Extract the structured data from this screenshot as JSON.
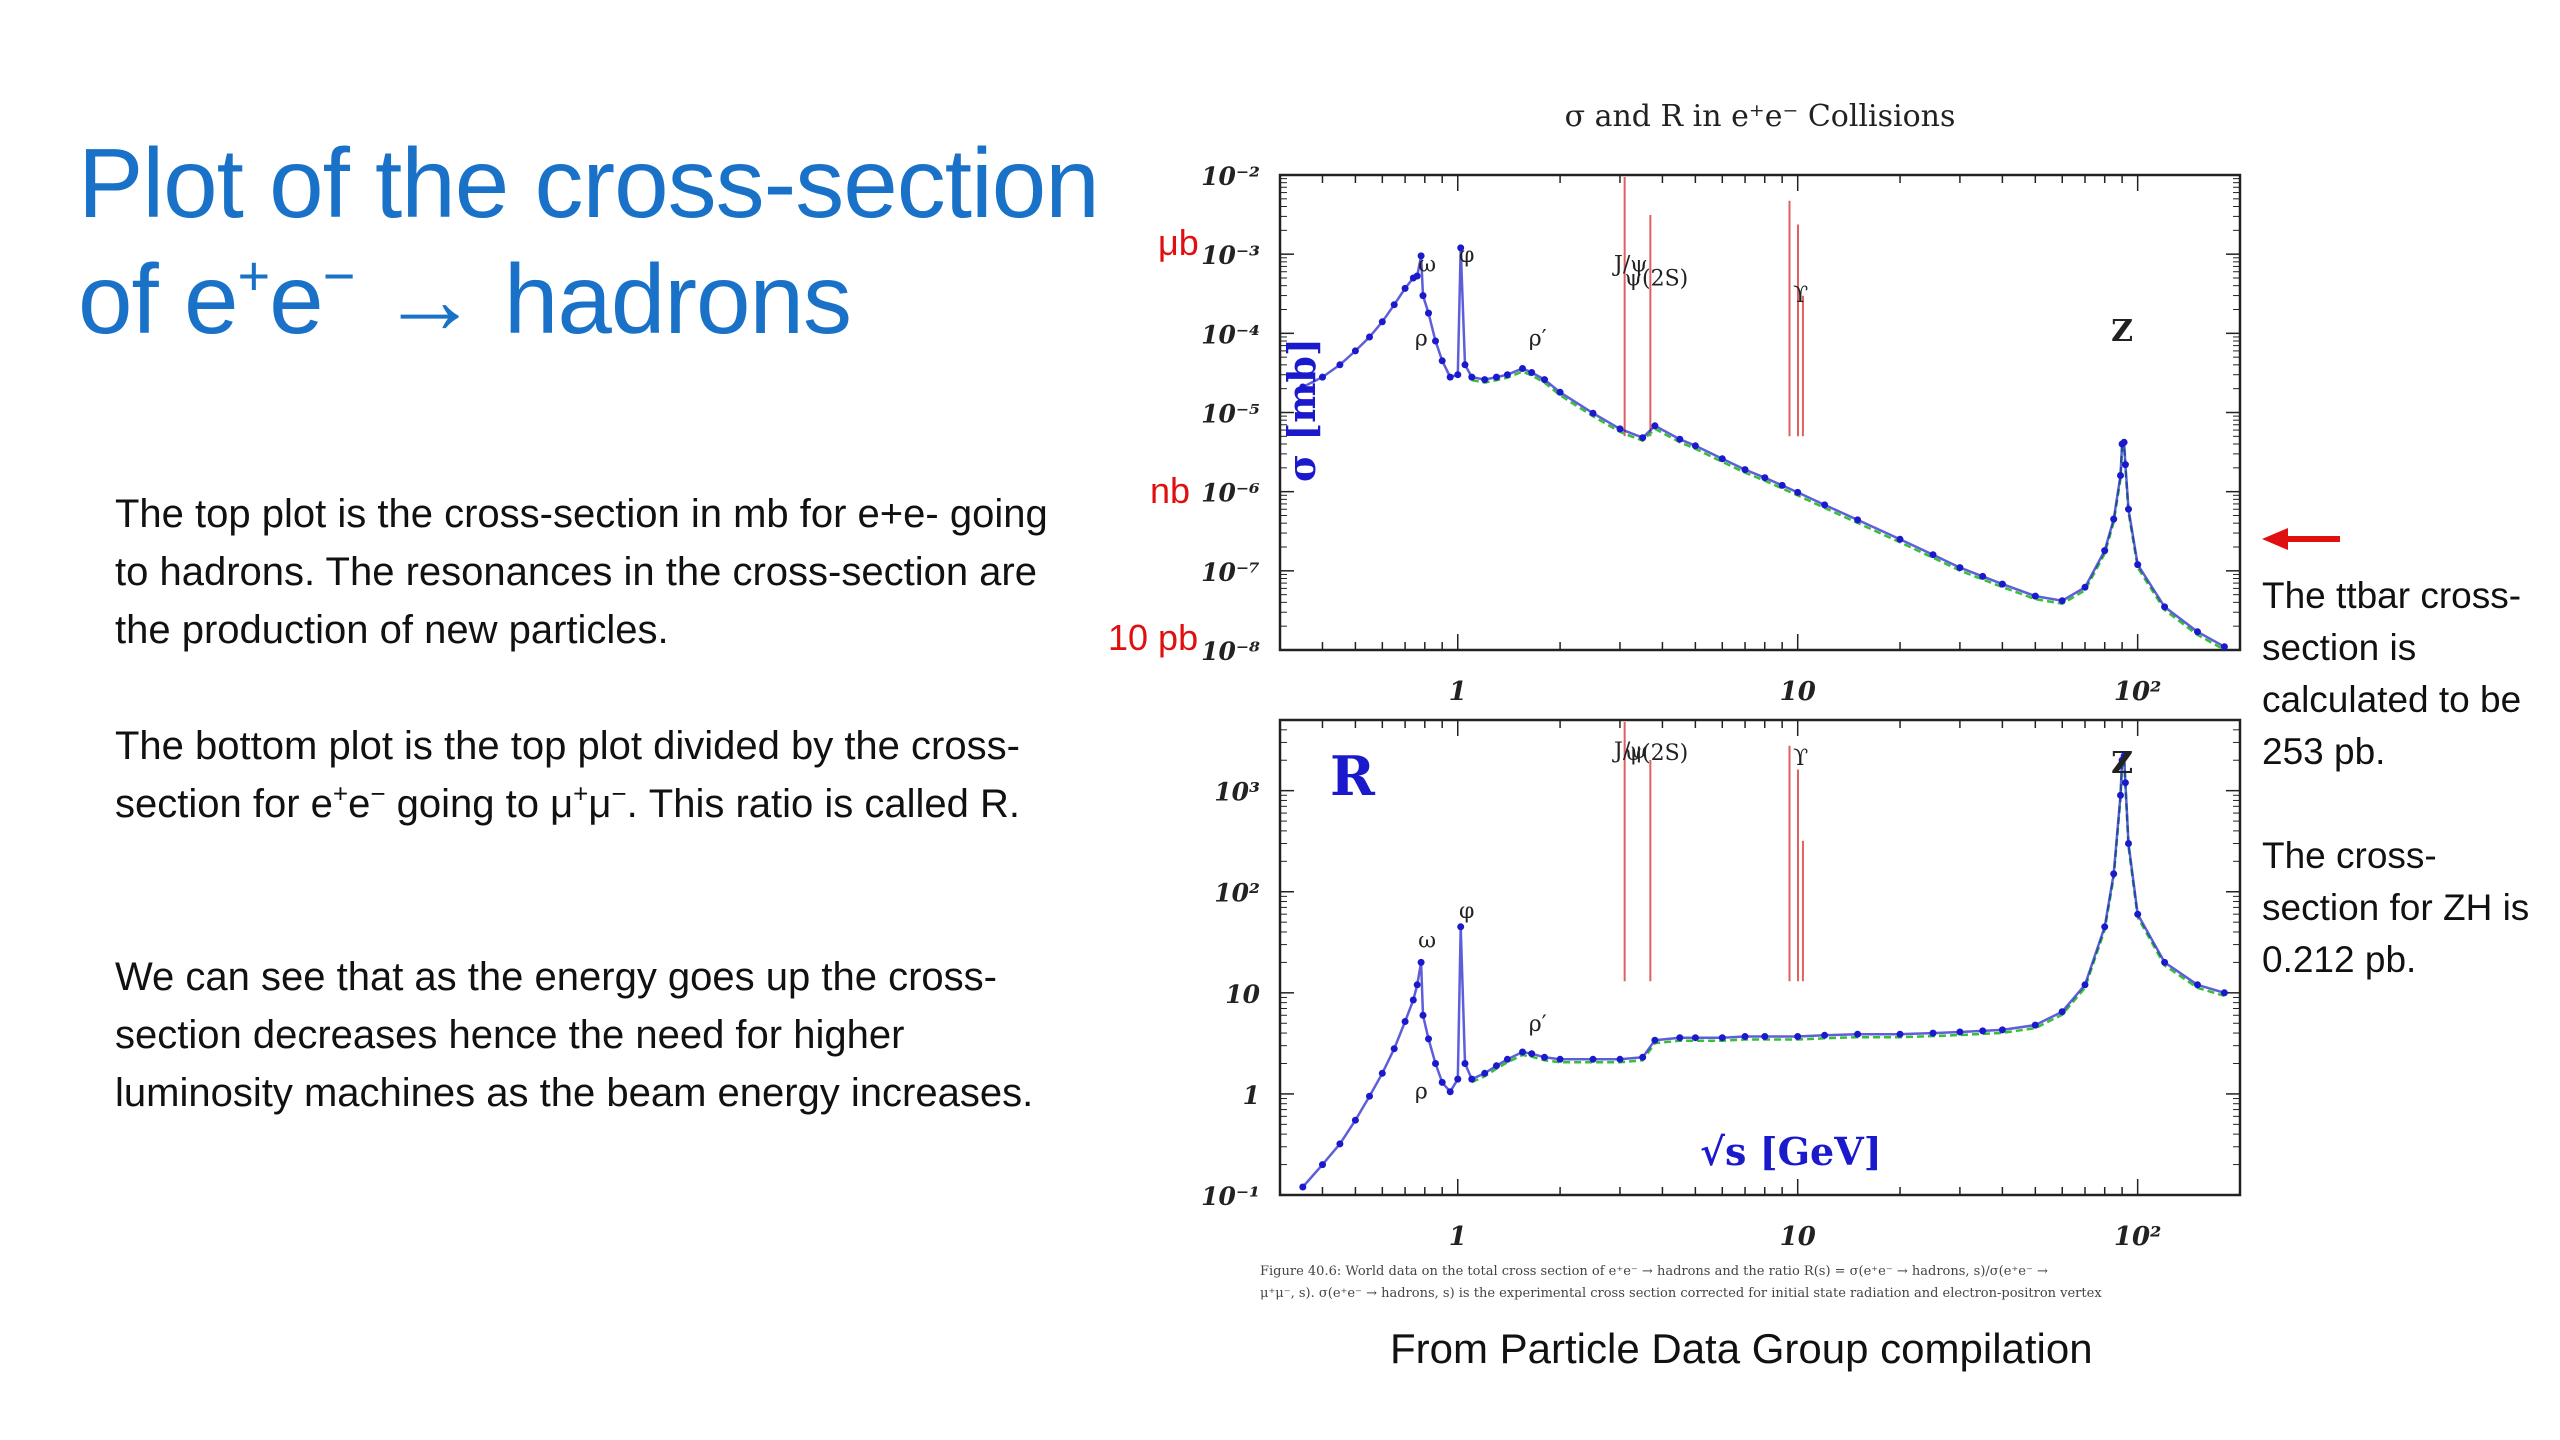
{
  "slide": {
    "title_line1": "Plot of the cross-section",
    "title_line2_a": "of e",
    "title_sup1": "+",
    "title_line2_b": "e",
    "title_sup2": "−",
    "title_line2_c": " → hadrons",
    "para1": "The top plot is the cross-section in mb for e+e- going to hadrons. The resonances in the cross-section are the production of new particles.",
    "para2_a": "The bottom plot is the top plot divided by the cross-section for e",
    "para2_sup1": "+",
    "para2_b": "e",
    "para2_sup2": "−",
    "para2_c": " going to μ",
    "para2_sup3": "+",
    "para2_d": "μ",
    "para2_sup4": "−",
    "para2_e": ". This ratio is called R.",
    "para3": "We can see that as the energy goes up the cross-section decreases hence the need for higher luminosity machines as the beam energy increases.",
    "side1": "The ttbar cross-section is calculated to be 253 pb.",
    "side2": "The cross-section  for ZH is 0.212 pb.",
    "unit_ub": "μb",
    "unit_nb": "nb",
    "unit_10pb": "10 pb",
    "source": "From Particle Data Group compilation",
    "figure_caption_1": "Figure 40.6:  World data on the total cross section of e⁺e⁻ → hadrons and the ratio R(s) = σ(e⁺e⁻ → hadrons, s)/σ(e⁺e⁻ →",
    "figure_caption_2": "μ⁺μ⁻, s). σ(e⁺e⁻ → hadrons, s) is the experimental cross section corrected for initial state radiation and electron-positron vertex"
  },
  "colors": {
    "title": "#1a72c8",
    "data": "#1a1acc",
    "resonance": "#e06060",
    "fit": "#35c035",
    "arrow": "#e01010",
    "units": "#e01010"
  },
  "chart_data": [
    {
      "type": "scatter",
      "title": "σ and R in e⁺e⁻ Collisions",
      "ylabel": "σ [mb]",
      "xscale": "log",
      "yscale": "log",
      "xlim": [
        0.3,
        200
      ],
      "ylim": [
        1e-08,
        0.01
      ],
      "x_ticks": [
        "1",
        "10",
        "10²"
      ],
      "y_ticks": [
        "10⁻²",
        "10⁻³",
        "10⁻⁴",
        "10⁻⁵",
        "10⁻⁶",
        "10⁻⁷",
        "10⁻⁸"
      ],
      "resonance_labels": [
        {
          "label": "ω",
          "x": 0.78,
          "y": 0.0006
        },
        {
          "label": "ρ",
          "x": 0.75,
          "y": 7e-05
        },
        {
          "label": "φ",
          "x": 1.02,
          "y": 0.0008
        },
        {
          "label": "ρ′",
          "x": 1.65,
          "y": 7e-05
        },
        {
          "label": "J/ψ",
          "x": 3.1,
          "y": 0.0006
        },
        {
          "label": "ψ(2S)",
          "x": 3.69,
          "y": 0.0004
        },
        {
          "label": "ϒ",
          "x": 9.8,
          "y": 0.00025
        },
        {
          "label": "Z",
          "x": 91.2,
          "y": 8e-05
        }
      ],
      "series": [
        {
          "values": [
            [
              0.35,
              2.1e-05
            ],
            [
              0.4,
              2.8e-05
            ],
            [
              0.45,
              4e-05
            ],
            [
              0.5,
              6e-05
            ],
            [
              0.55,
              9e-05
            ],
            [
              0.6,
              0.00014
            ],
            [
              0.65,
              0.00023
            ],
            [
              0.7,
              0.00037
            ],
            [
              0.74,
              0.0005
            ],
            [
              0.76,
              0.00053
            ],
            [
              0.78,
              0.00095
            ],
            [
              0.79,
              0.0003
            ],
            [
              0.82,
              0.00018
            ],
            [
              0.86,
              8e-05
            ],
            [
              0.9,
              4.5e-05
            ],
            [
              0.95,
              2.8e-05
            ],
            [
              1.0,
              3e-05
            ],
            [
              1.02,
              0.0012
            ],
            [
              1.05,
              4e-05
            ],
            [
              1.1,
              2.8e-05
            ],
            [
              1.2,
              2.6e-05
            ],
            [
              1.3,
              2.8e-05
            ],
            [
              1.4,
              3e-05
            ],
            [
              1.55,
              3.6e-05
            ],
            [
              1.65,
              3.2e-05
            ],
            [
              1.8,
              2.6e-05
            ],
            [
              2.0,
              1.8e-05
            ],
            [
              2.5,
              9.8e-06
            ],
            [
              3.0,
              6.2e-06
            ],
            [
              3.5,
              4.8e-06
            ],
            [
              3.8,
              6.8e-06
            ],
            [
              4.5,
              4.6e-06
            ],
            [
              5.0,
              3.8e-06
            ],
            [
              6.0,
              2.6e-06
            ],
            [
              7.0,
              1.9e-06
            ],
            [
              8.0,
              1.5e-06
            ],
            [
              9.0,
              1.2e-06
            ],
            [
              10,
              9.8e-07
            ],
            [
              12,
              6.8e-07
            ],
            [
              15,
              4.4e-07
            ],
            [
              20,
              2.5e-07
            ],
            [
              25,
              1.6e-07
            ],
            [
              30,
              1.1e-07
            ],
            [
              35,
              8.5e-08
            ],
            [
              40,
              6.8e-08
            ],
            [
              50,
              4.8e-08
            ],
            [
              60,
              4.2e-08
            ],
            [
              70,
              6.2e-08
            ],
            [
              80,
              1.8e-07
            ],
            [
              85,
              4.5e-07
            ],
            [
              89,
              1.6e-06
            ],
            [
              90,
              4e-06
            ],
            [
              91.2,
              4.2e-06
            ],
            [
              92,
              2.2e-06
            ],
            [
              94,
              6e-07
            ],
            [
              100,
              1.2e-07
            ],
            [
              120,
              3.5e-08
            ],
            [
              150,
              1.7e-08
            ],
            [
              180,
              1.1e-08
            ]
          ]
        }
      ]
    },
    {
      "type": "scatter",
      "title": "",
      "ylabel": "R",
      "xlabel": "√s [GeV]",
      "xscale": "log",
      "yscale": "log",
      "xlim": [
        0.3,
        200
      ],
      "ylim": [
        0.1,
        5000
      ],
      "x_ticks": [
        "1",
        "10",
        "10²"
      ],
      "y_ticks": [
        "10³",
        "10²",
        "10",
        "1",
        "10⁻¹"
      ],
      "resonance_labels": [
        {
          "label": "ω",
          "x": 0.78,
          "y": 28
        },
        {
          "label": "ρ",
          "x": 0.75,
          "y": 0.9
        },
        {
          "label": "φ",
          "x": 1.02,
          "y": 55
        },
        {
          "label": "ρ′",
          "x": 1.65,
          "y": 4.2
        },
        {
          "label": "J/ψ",
          "x": 3.1,
          "y": 2100
        },
        {
          "label": "ψ(2S)",
          "x": 3.69,
          "y": 2000
        },
        {
          "label": "ϒ",
          "x": 9.8,
          "y": 1800
        },
        {
          "label": "Z",
          "x": 91.2,
          "y": 1500
        }
      ],
      "series": [
        {
          "values": [
            [
              0.35,
              0.12
            ],
            [
              0.4,
              0.2
            ],
            [
              0.45,
              0.32
            ],
            [
              0.5,
              0.55
            ],
            [
              0.55,
              0.95
            ],
            [
              0.6,
              1.6
            ],
            [
              0.65,
              2.8
            ],
            [
              0.7,
              5.2
            ],
            [
              0.74,
              8.5
            ],
            [
              0.76,
              12
            ],
            [
              0.78,
              20
            ],
            [
              0.79,
              6
            ],
            [
              0.82,
              3.5
            ],
            [
              0.86,
              2
            ],
            [
              0.9,
              1.3
            ],
            [
              0.95,
              1.05
            ],
            [
              1.0,
              1.4
            ],
            [
              1.02,
              45
            ],
            [
              1.05,
              2
            ],
            [
              1.1,
              1.4
            ],
            [
              1.2,
              1.6
            ],
            [
              1.3,
              1.9
            ],
            [
              1.4,
              2.2
            ],
            [
              1.55,
              2.6
            ],
            [
              1.65,
              2.5
            ],
            [
              1.8,
              2.3
            ],
            [
              2.0,
              2.2
            ],
            [
              2.5,
              2.2
            ],
            [
              3.0,
              2.2
            ],
            [
              3.5,
              2.3
            ],
            [
              3.8,
              3.4
            ],
            [
              4.5,
              3.6
            ],
            [
              5.0,
              3.6
            ],
            [
              6.0,
              3.6
            ],
            [
              7.0,
              3.7
            ],
            [
              8.0,
              3.7
            ],
            [
              10,
              3.7
            ],
            [
              12,
              3.8
            ],
            [
              15,
              3.9
            ],
            [
              20,
              3.9
            ],
            [
              25,
              4.0
            ],
            [
              30,
              4.1
            ],
            [
              35,
              4.2
            ],
            [
              40,
              4.3
            ],
            [
              50,
              4.8
            ],
            [
              60,
              6.5
            ],
            [
              70,
              12
            ],
            [
              80,
              45
            ],
            [
              85,
              150
            ],
            [
              89,
              900
            ],
            [
              90,
              2000
            ],
            [
              91.2,
              2200
            ],
            [
              92,
              1200
            ],
            [
              94,
              300
            ],
            [
              100,
              60
            ],
            [
              120,
              20
            ],
            [
              150,
              12
            ],
            [
              180,
              10
            ]
          ]
        }
      ]
    }
  ]
}
